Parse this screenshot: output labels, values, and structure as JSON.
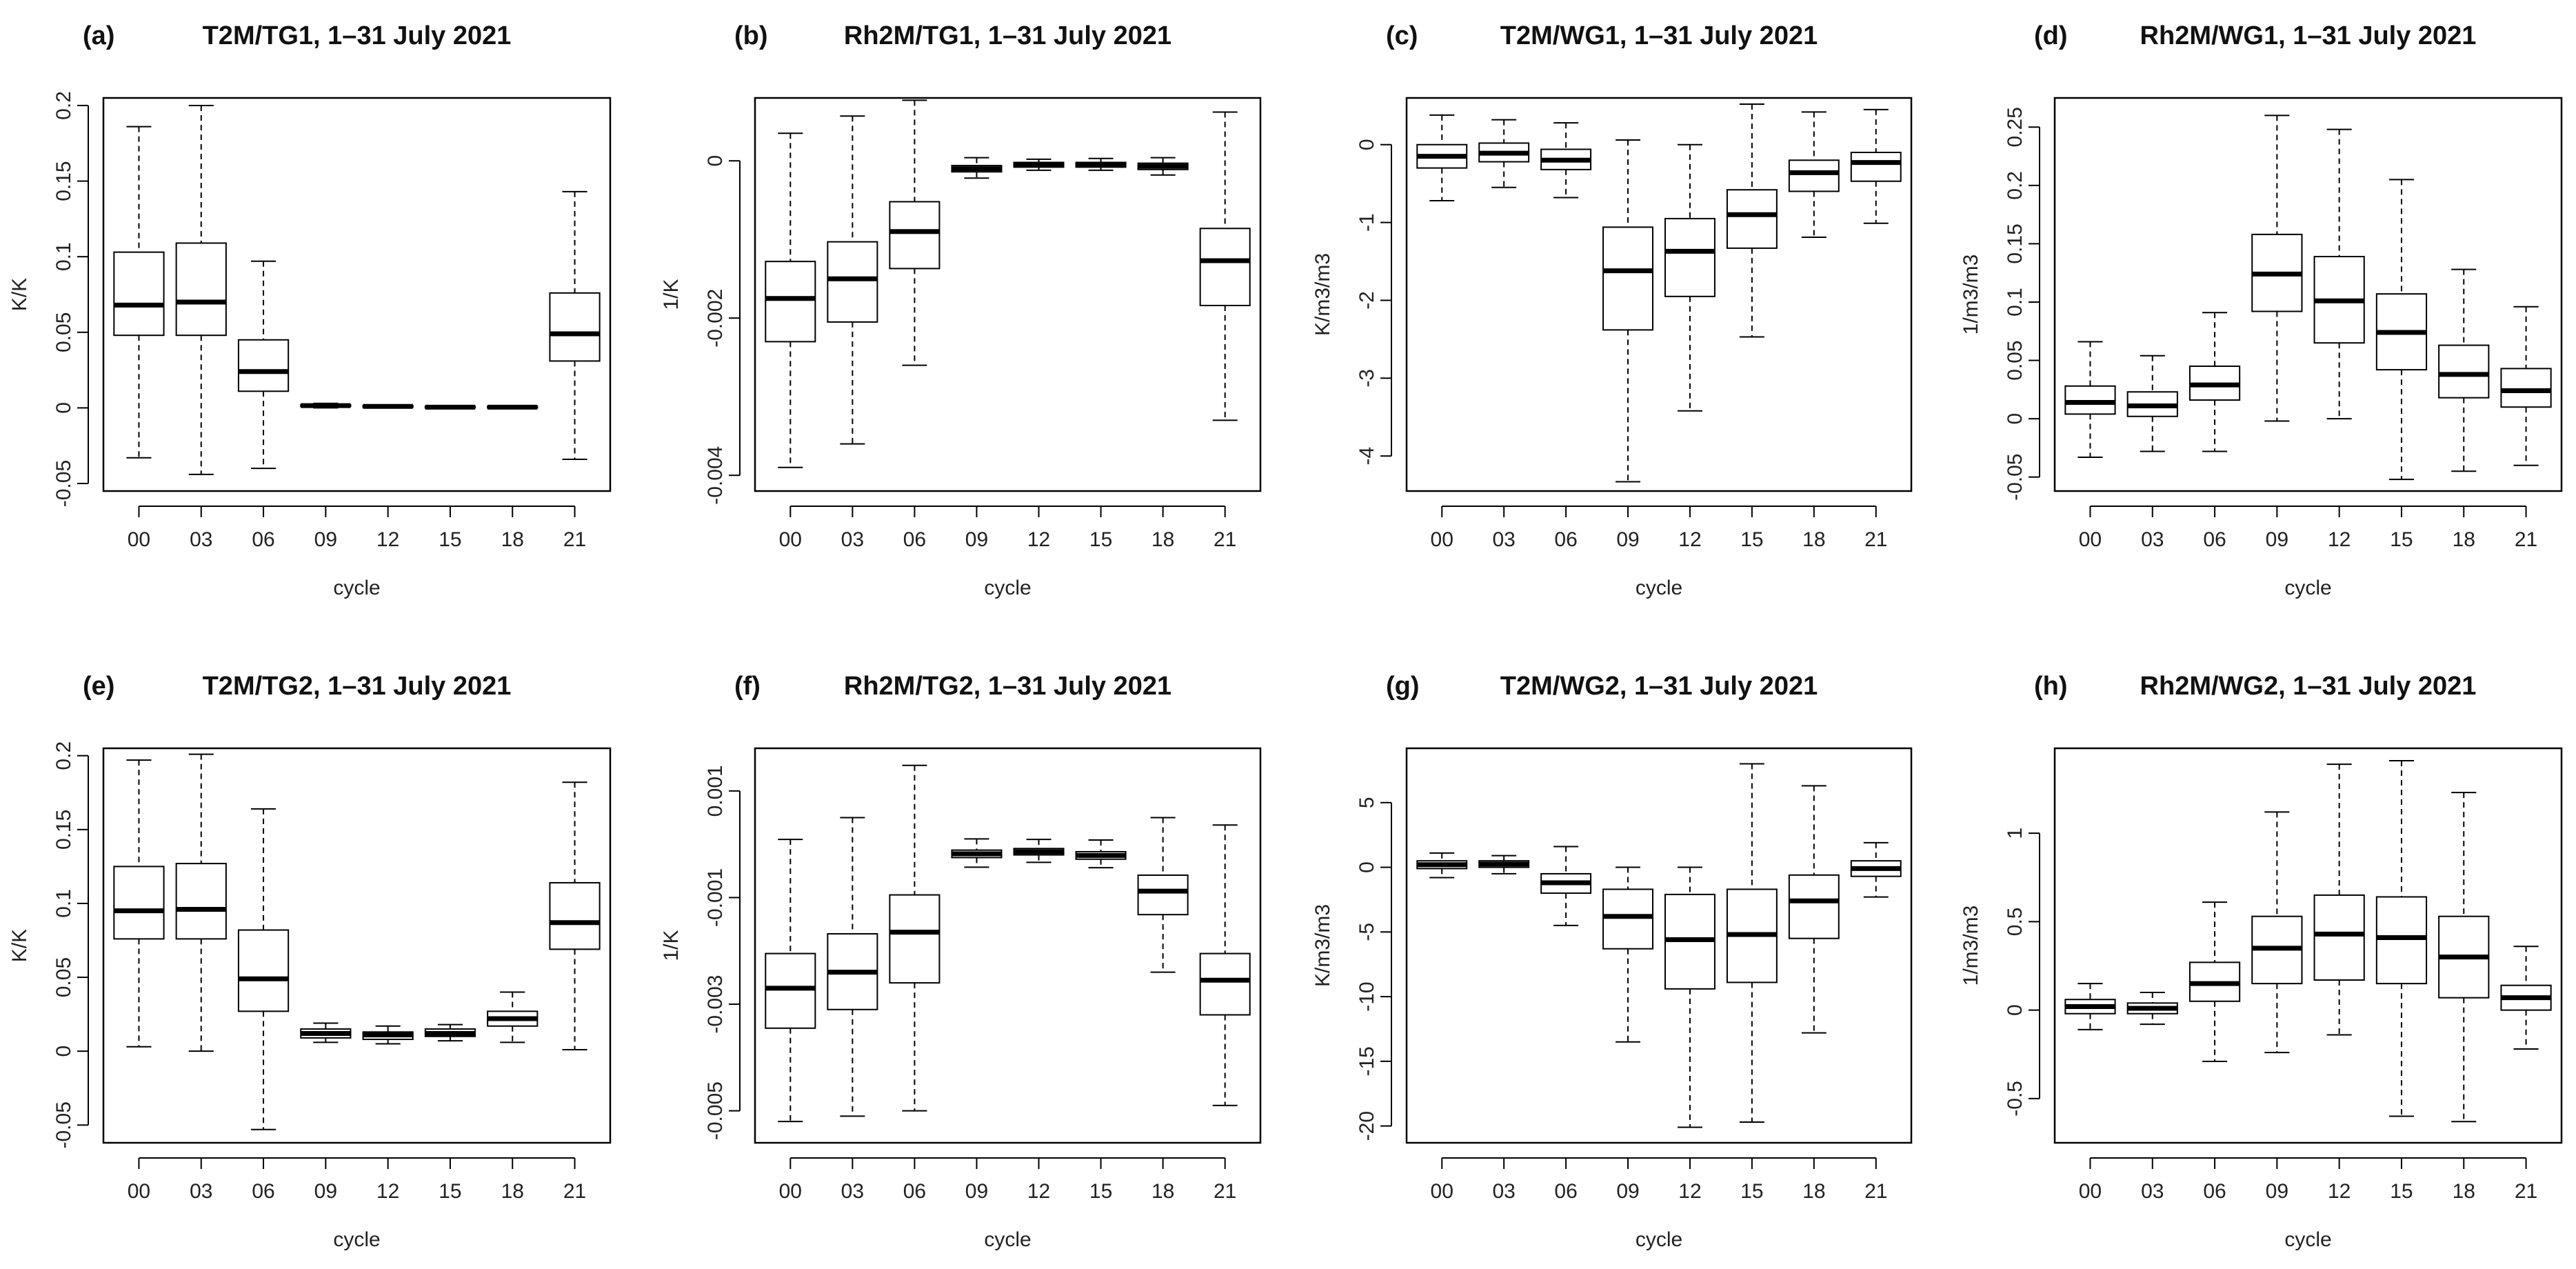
{
  "chart_data": [
    {
      "panel": "(a)",
      "title": "T2M/TG1, 1–31 July 2021",
      "type": "boxplot",
      "xlabel": "cycle",
      "ylabel": "K/K",
      "categories": [
        "00",
        "03",
        "06",
        "09",
        "12",
        "15",
        "18",
        "21"
      ],
      "ylim": [
        -0.055,
        0.205
      ],
      "yticks": [
        -0.05,
        0,
        0.05,
        0.1,
        0.15,
        0.2
      ],
      "ytick_labels": [
        "-0.05",
        "0",
        "0.05",
        "0.1",
        "0.15",
        "0.2"
      ],
      "boxes": [
        {
          "min": -0.033,
          "q1": 0.048,
          "median": 0.068,
          "q3": 0.103,
          "max": 0.186
        },
        {
          "min": -0.044,
          "q1": 0.048,
          "median": 0.07,
          "q3": 0.109,
          "max": 0.2
        },
        {
          "min": -0.04,
          "q1": 0.011,
          "median": 0.024,
          "q3": 0.045,
          "max": 0.097
        },
        {
          "min": 0.0,
          "q1": 0.001,
          "median": 0.0015,
          "q3": 0.002,
          "max": 0.003
        },
        {
          "min": 0.0,
          "q1": 0.0005,
          "median": 0.001,
          "q3": 0.0015,
          "max": 0.002
        },
        {
          "min": -0.0005,
          "q1": 0.0,
          "median": 0.0005,
          "q3": 0.001,
          "max": 0.0015
        },
        {
          "min": -0.0005,
          "q1": 0.0,
          "median": 0.0005,
          "q3": 0.001,
          "max": 0.0015
        },
        {
          "min": -0.034,
          "q1": 0.031,
          "median": 0.049,
          "q3": 0.076,
          "max": 0.143
        }
      ]
    },
    {
      "panel": "(b)",
      "title": "Rh2M/TG1, 1–31 July 2021",
      "type": "boxplot",
      "xlabel": "cycle",
      "ylabel": "1/K",
      "categories": [
        "00",
        "03",
        "06",
        "09",
        "12",
        "15",
        "18",
        "21"
      ],
      "ylim": [
        -0.0042,
        0.0008
      ],
      "yticks": [
        -0.004,
        -0.002,
        0
      ],
      "ytick_labels": [
        "-0.004",
        "-0.002",
        "0"
      ],
      "boxes": [
        {
          "min": -0.0039,
          "q1": -0.0023,
          "median": -0.00175,
          "q3": -0.00128,
          "max": 0.00035
        },
        {
          "min": -0.0036,
          "q1": -0.00205,
          "median": -0.0015,
          "q3": -0.00103,
          "max": 0.00057
        },
        {
          "min": -0.0026,
          "q1": -0.00137,
          "median": -0.0009,
          "q3": -0.00052,
          "max": 0.00077
        },
        {
          "min": -0.00022,
          "q1": -0.00014,
          "median": -0.0001,
          "q3": -6e-05,
          "max": 4e-05
        },
        {
          "min": -0.00012,
          "q1": -8e-05,
          "median": -5e-05,
          "q3": -2e-05,
          "max": 2e-05
        },
        {
          "min": -0.00012,
          "q1": -8e-05,
          "median": -5e-05,
          "q3": -2e-05,
          "max": 3e-05
        },
        {
          "min": -0.00018,
          "q1": -0.00011,
          "median": -7e-05,
          "q3": -3e-05,
          "max": 4e-05
        },
        {
          "min": -0.0033,
          "q1": -0.00184,
          "median": -0.00127,
          "q3": -0.00086,
          "max": 0.00062
        }
      ]
    },
    {
      "panel": "(c)",
      "title": "T2M/WG1, 1–31 July 2021",
      "type": "boxplot",
      "xlabel": "cycle",
      "ylabel": "K/m3/m3",
      "categories": [
        "00",
        "03",
        "06",
        "09",
        "12",
        "15",
        "18",
        "21"
      ],
      "ylim": [
        -4.45,
        0.6
      ],
      "yticks": [
        -4,
        -3,
        -2,
        -1,
        0
      ],
      "ytick_labels": [
        "-4",
        "-3",
        "-2",
        "-1",
        "0"
      ],
      "boxes": [
        {
          "min": -0.72,
          "q1": -0.3,
          "median": -0.15,
          "q3": 0.0,
          "max": 0.38
        },
        {
          "min": -0.55,
          "q1": -0.22,
          "median": -0.11,
          "q3": 0.02,
          "max": 0.32
        },
        {
          "min": -0.68,
          "q1": -0.32,
          "median": -0.2,
          "q3": -0.06,
          "max": 0.28
        },
        {
          "min": -4.33,
          "q1": -2.38,
          "median": -1.62,
          "q3": -1.06,
          "max": 0.06
        },
        {
          "min": -3.42,
          "q1": -1.95,
          "median": -1.37,
          "q3": -0.95,
          "max": 0.0
        },
        {
          "min": -2.47,
          "q1": -1.33,
          "median": -0.9,
          "q3": -0.58,
          "max": 0.52
        },
        {
          "min": -1.19,
          "q1": -0.6,
          "median": -0.36,
          "q3": -0.2,
          "max": 0.42
        },
        {
          "min": -1.01,
          "q1": -0.47,
          "median": -0.23,
          "q3": -0.1,
          "max": 0.45
        }
      ]
    },
    {
      "panel": "(d)",
      "title": "Rh2M/WG1, 1–31 July 2021",
      "type": "boxplot",
      "xlabel": "cycle",
      "ylabel": "1/m3/m3",
      "categories": [
        "00",
        "03",
        "06",
        "09",
        "12",
        "15",
        "18",
        "21"
      ],
      "ylim": [
        -0.062,
        0.275
      ],
      "yticks": [
        -0.05,
        0,
        0.05,
        0.1,
        0.15,
        0.2,
        0.25
      ],
      "ytick_labels": [
        "-0.05",
        "0",
        "0.05",
        "0.1",
        "0.15",
        "0.2",
        "0.25"
      ],
      "boxes": [
        {
          "min": -0.033,
          "q1": 0.004,
          "median": 0.014,
          "q3": 0.028,
          "max": 0.066
        },
        {
          "min": -0.028,
          "q1": 0.002,
          "median": 0.011,
          "q3": 0.023,
          "max": 0.054
        },
        {
          "min": -0.028,
          "q1": 0.016,
          "median": 0.029,
          "q3": 0.045,
          "max": 0.091
        },
        {
          "min": -0.002,
          "q1": 0.092,
          "median": 0.124,
          "q3": 0.158,
          "max": 0.26
        },
        {
          "min": 0.0,
          "q1": 0.065,
          "median": 0.101,
          "q3": 0.139,
          "max": 0.248
        },
        {
          "min": -0.052,
          "q1": 0.042,
          "median": 0.074,
          "q3": 0.107,
          "max": 0.205
        },
        {
          "min": -0.045,
          "q1": 0.018,
          "median": 0.038,
          "q3": 0.063,
          "max": 0.128
        },
        {
          "min": -0.04,
          "q1": 0.01,
          "median": 0.024,
          "q3": 0.043,
          "max": 0.096
        }
      ]
    },
    {
      "panel": "(e)",
      "title": "T2M/TG2, 1–31 July 2021",
      "type": "boxplot",
      "xlabel": "cycle",
      "ylabel": "K/K",
      "categories": [
        "00",
        "03",
        "06",
        "09",
        "12",
        "15",
        "18",
        "21"
      ],
      "ylim": [
        -0.062,
        0.205
      ],
      "yticks": [
        -0.05,
        0,
        0.05,
        0.1,
        0.15,
        0.2
      ],
      "ytick_labels": [
        "-0.05",
        "0",
        "0.05",
        "0.1",
        "0.15",
        "0.2"
      ],
      "boxes": [
        {
          "min": 0.003,
          "q1": 0.076,
          "median": 0.095,
          "q3": 0.125,
          "max": 0.197
        },
        {
          "min": 0.0,
          "q1": 0.076,
          "median": 0.096,
          "q3": 0.127,
          "max": 0.201
        },
        {
          "min": -0.053,
          "q1": 0.027,
          "median": 0.049,
          "q3": 0.082,
          "max": 0.164
        },
        {
          "min": 0.006,
          "q1": 0.009,
          "median": 0.012,
          "q3": 0.015,
          "max": 0.019
        },
        {
          "min": 0.005,
          "q1": 0.008,
          "median": 0.011,
          "q3": 0.013,
          "max": 0.017
        },
        {
          "min": 0.007,
          "q1": 0.01,
          "median": 0.012,
          "q3": 0.015,
          "max": 0.018
        },
        {
          "min": 0.006,
          "q1": 0.017,
          "median": 0.022,
          "q3": 0.027,
          "max": 0.04
        },
        {
          "min": 0.001,
          "q1": 0.069,
          "median": 0.087,
          "q3": 0.114,
          "max": 0.182
        }
      ]
    },
    {
      "panel": "(f)",
      "title": "Rh2M/TG2, 1–31 July 2021",
      "type": "boxplot",
      "xlabel": "cycle",
      "ylabel": "1/K",
      "categories": [
        "00",
        "03",
        "06",
        "09",
        "12",
        "15",
        "18",
        "21"
      ],
      "ylim": [
        -0.0056,
        0.0018
      ],
      "yticks": [
        -0.005,
        -0.003,
        -0.001,
        0.001
      ],
      "ytick_labels": [
        "-0.005",
        "-0.003",
        "-0.001",
        "0.001"
      ],
      "boxes": [
        {
          "min": -0.0052,
          "q1": -0.00345,
          "median": -0.0027,
          "q3": -0.00205,
          "max": 9e-05
        },
        {
          "min": -0.0051,
          "q1": -0.0031,
          "median": -0.0024,
          "q3": -0.00168,
          "max": 0.0005
        },
        {
          "min": -0.005,
          "q1": -0.0026,
          "median": -0.00165,
          "q3": -0.00095,
          "max": 0.00148
        },
        {
          "min": -0.00043,
          "q1": -0.00025,
          "median": -0.00018,
          "q3": -0.00011,
          "max": 0.0001
        },
        {
          "min": -0.00034,
          "q1": -0.0002,
          "median": -0.00014,
          "q3": -8e-05,
          "max": 9e-05
        },
        {
          "min": -0.00044,
          "q1": -0.00028,
          "median": -0.00021,
          "q3": -0.00014,
          "max": 8e-05
        },
        {
          "min": -0.0024,
          "q1": -0.00132,
          "median": -0.00088,
          "q3": -0.00058,
          "max": 0.0005
        },
        {
          "min": -0.0049,
          "q1": -0.0032,
          "median": -0.00255,
          "q3": -0.00205,
          "max": 0.00036
        }
      ]
    },
    {
      "panel": "(g)",
      "title": "T2M/WG2, 1–31 July 2021",
      "type": "boxplot",
      "xlabel": "cycle",
      "ylabel": "K/m3/m3",
      "categories": [
        "00",
        "03",
        "06",
        "09",
        "12",
        "15",
        "18",
        "21"
      ],
      "ylim": [
        -21.3,
        9.2
      ],
      "yticks": [
        -20,
        -15,
        -10,
        -5,
        0,
        5
      ],
      "ytick_labels": [
        "-20",
        "-15",
        "-10",
        "-5",
        "0",
        "5"
      ],
      "boxes": [
        {
          "min": -0.8,
          "q1": -0.1,
          "median": 0.2,
          "q3": 0.5,
          "max": 1.1
        },
        {
          "min": -0.5,
          "q1": 0.0,
          "median": 0.25,
          "q3": 0.5,
          "max": 0.9
        },
        {
          "min": -4.5,
          "q1": -2.0,
          "median": -1.2,
          "q3": -0.5,
          "max": 1.6
        },
        {
          "min": -13.5,
          "q1": -6.3,
          "median": -3.8,
          "q3": -1.7,
          "max": 0.0
        },
        {
          "min": -20.1,
          "q1": -9.4,
          "median": -5.6,
          "q3": -2.1,
          "max": 0.0
        },
        {
          "min": -19.7,
          "q1": -8.9,
          "median": -5.2,
          "q3": -1.7,
          "max": 8.0
        },
        {
          "min": -12.8,
          "q1": -5.5,
          "median": -2.6,
          "q3": -0.6,
          "max": 6.3
        },
        {
          "min": -2.3,
          "q1": -0.7,
          "median": -0.1,
          "q3": 0.5,
          "max": 1.9
        }
      ]
    },
    {
      "panel": "(h)",
      "title": "Rh2M/WG2, 1–31 July 2021",
      "type": "boxplot",
      "xlabel": "cycle",
      "ylabel": "1/m3/m3",
      "categories": [
        "00",
        "03",
        "06",
        "09",
        "12",
        "15",
        "18",
        "21"
      ],
      "ylim": [
        -0.75,
        1.48
      ],
      "yticks": [
        -0.5,
        0,
        0.5,
        1
      ],
      "ytick_labels": [
        "-0.5",
        "0",
        "0.5",
        "1"
      ],
      "boxes": [
        {
          "min": -0.11,
          "q1": -0.02,
          "median": 0.02,
          "q3": 0.06,
          "max": 0.15
        },
        {
          "min": -0.08,
          "q1": -0.02,
          "median": 0.01,
          "q3": 0.04,
          "max": 0.1
        },
        {
          "min": -0.29,
          "q1": 0.05,
          "median": 0.15,
          "q3": 0.27,
          "max": 0.61
        },
        {
          "min": -0.24,
          "q1": 0.15,
          "median": 0.35,
          "q3": 0.53,
          "max": 1.12
        },
        {
          "min": -0.14,
          "q1": 0.17,
          "median": 0.43,
          "q3": 0.65,
          "max": 1.39
        },
        {
          "min": -0.6,
          "q1": 0.15,
          "median": 0.41,
          "q3": 0.64,
          "max": 1.41
        },
        {
          "min": -0.63,
          "q1": 0.07,
          "median": 0.3,
          "q3": 0.53,
          "max": 1.23
        },
        {
          "min": -0.22,
          "q1": 0.0,
          "median": 0.07,
          "q3": 0.14,
          "max": 0.36
        }
      ]
    }
  ]
}
